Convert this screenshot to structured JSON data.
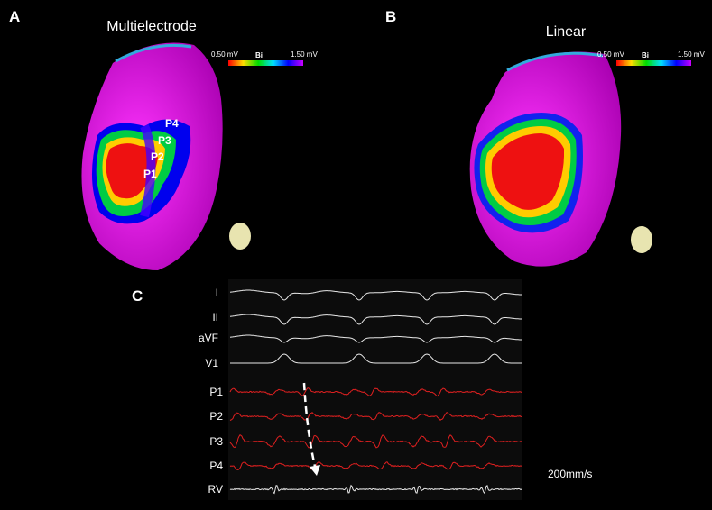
{
  "panels": [
    {
      "label": "A",
      "title": "Multielectrode",
      "colorbar": {
        "min_label": "0.50 mV",
        "name": "Bi",
        "max_label": "1.50 mV"
      },
      "points": [
        "P4",
        "P3",
        "P2",
        "P1"
      ]
    },
    {
      "label": "B",
      "title": "Linear",
      "colorbar": {
        "min_label": "0.50 mV",
        "name": "Bi",
        "max_label": "1.50 mV"
      }
    }
  ],
  "panel_c": {
    "label": "C",
    "leads": [
      "I",
      "II",
      "aVF",
      "V1",
      "P1",
      "P2",
      "P3",
      "P4",
      "RV"
    ],
    "speed": "200mm/s"
  }
}
